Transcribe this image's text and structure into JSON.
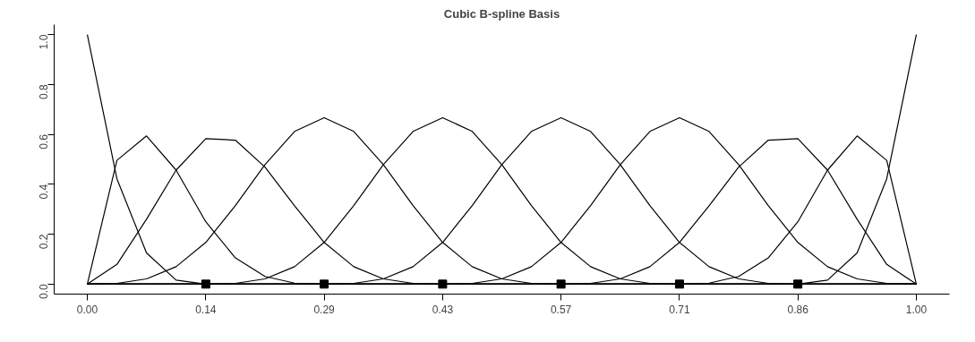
{
  "chart_data": {
    "type": "line",
    "title": "Cubic B-spline Basis",
    "x": [
      0,
      0.0357,
      0.0714,
      0.1071,
      0.1429,
      0.1786,
      0.2143,
      0.25,
      0.2857,
      0.3214,
      0.3571,
      0.3929,
      0.4286,
      0.4643,
      0.5,
      0.5357,
      0.5714,
      0.6071,
      0.6429,
      0.6786,
      0.7143,
      0.75,
      0.7857,
      0.8214,
      0.8571,
      0.8929,
      0.9286,
      0.9643,
      1
    ],
    "series": [
      {
        "color": "#000000",
        "values": [
          1,
          0.422,
          0.125,
          0.016,
          0,
          0,
          0,
          0,
          0,
          0,
          0,
          0,
          0,
          0,
          0,
          0,
          0,
          0,
          0,
          0,
          0,
          0,
          0,
          0,
          0,
          0,
          0,
          0,
          0
        ]
      },
      {
        "color": "#000000",
        "values": [
          0,
          0.496,
          0.594,
          0.457,
          0.25,
          0.105,
          0.031,
          0.004,
          0,
          0,
          0,
          0,
          0,
          0,
          0,
          0,
          0,
          0,
          0,
          0,
          0,
          0,
          0,
          0,
          0,
          0,
          0,
          0,
          0
        ]
      },
      {
        "color": "#000000",
        "values": [
          0,
          0.079,
          0.26,
          0.457,
          0.583,
          0.577,
          0.469,
          0.314,
          0.167,
          0.07,
          0.021,
          0.003,
          0,
          0,
          0,
          0,
          0,
          0,
          0,
          0,
          0,
          0,
          0,
          0,
          0,
          0,
          0,
          0,
          0
        ]
      },
      {
        "color": "#000000",
        "values": [
          0,
          0.003,
          0.021,
          0.07,
          0.167,
          0.315,
          0.479,
          0.612,
          0.667,
          0.612,
          0.479,
          0.315,
          0.167,
          0.07,
          0.021,
          0.003,
          0,
          0,
          0,
          0,
          0,
          0,
          0,
          0,
          0,
          0,
          0,
          0,
          0
        ]
      },
      {
        "color": "#000000",
        "values": [
          0,
          0,
          0,
          0,
          0,
          0.003,
          0.021,
          0.07,
          0.167,
          0.315,
          0.479,
          0.612,
          0.667,
          0.612,
          0.479,
          0.315,
          0.167,
          0.07,
          0.021,
          0.003,
          0,
          0,
          0,
          0,
          0,
          0,
          0,
          0,
          0
        ]
      },
      {
        "color": "#000000",
        "values": [
          0,
          0,
          0,
          0,
          0,
          0,
          0,
          0,
          0,
          0.003,
          0.021,
          0.07,
          0.167,
          0.315,
          0.479,
          0.612,
          0.667,
          0.612,
          0.479,
          0.315,
          0.167,
          0.07,
          0.021,
          0.003,
          0,
          0,
          0,
          0,
          0
        ]
      },
      {
        "color": "#000000",
        "values": [
          0,
          0,
          0,
          0,
          0,
          0,
          0,
          0,
          0,
          0,
          0,
          0,
          0,
          0.003,
          0.021,
          0.07,
          0.167,
          0.315,
          0.479,
          0.612,
          0.667,
          0.612,
          0.479,
          0.315,
          0.167,
          0.07,
          0.021,
          0.003,
          0
        ]
      },
      {
        "color": "#000000",
        "values": [
          0,
          0,
          0,
          0,
          0,
          0,
          0,
          0,
          0,
          0,
          0,
          0,
          0,
          0,
          0,
          0,
          0,
          0.003,
          0.021,
          0.07,
          0.167,
          0.314,
          0.469,
          0.577,
          0.583,
          0.457,
          0.26,
          0.079,
          0
        ]
      },
      {
        "color": "#000000",
        "values": [
          0,
          0,
          0,
          0,
          0,
          0,
          0,
          0,
          0,
          0,
          0,
          0,
          0,
          0,
          0,
          0,
          0,
          0,
          0,
          0,
          0,
          0.004,
          0.031,
          0.105,
          0.25,
          0.457,
          0.594,
          0.496,
          0
        ]
      },
      {
        "color": "#000000",
        "values": [
          0,
          0,
          0,
          0,
          0,
          0,
          0,
          0,
          0,
          0,
          0,
          0,
          0,
          0,
          0,
          0,
          0,
          0,
          0,
          0,
          0,
          0,
          0,
          0,
          0,
          0.016,
          0.125,
          0.422,
          1
        ]
      },
      {
        "type": "scatter",
        "marker": "square",
        "color": "#000000",
        "x": [
          0.1429,
          0.2857,
          0.4286,
          0.5714,
          0.7143,
          0.8571
        ],
        "values": [
          0,
          0,
          0,
          0,
          0,
          0
        ]
      }
    ],
    "xlim": [
      -0.04,
      1.04
    ],
    "ylim": [
      -0.04,
      1.04
    ],
    "xticks": [
      {
        "value": 0,
        "label": "0.00"
      },
      {
        "value": 0.1429,
        "label": "0.14"
      },
      {
        "value": 0.2857,
        "label": "0.29"
      },
      {
        "value": 0.4286,
        "label": "0.43"
      },
      {
        "value": 0.5714,
        "label": "0.57"
      },
      {
        "value": 0.7143,
        "label": "0.71"
      },
      {
        "value": 0.8571,
        "label": "0.86"
      },
      {
        "value": 1,
        "label": "1.00"
      }
    ],
    "yticks": [
      {
        "value": 0,
        "label": "0.0"
      },
      {
        "value": 0.2,
        "label": "0.2"
      },
      {
        "value": 0.4,
        "label": "0.4"
      },
      {
        "value": 0.6,
        "label": "0.6"
      },
      {
        "value": 0.8,
        "label": "0.8"
      },
      {
        "value": 1,
        "label": "1.0"
      }
    ],
    "grid": false,
    "marker": "none",
    "line_style": "solid"
  }
}
